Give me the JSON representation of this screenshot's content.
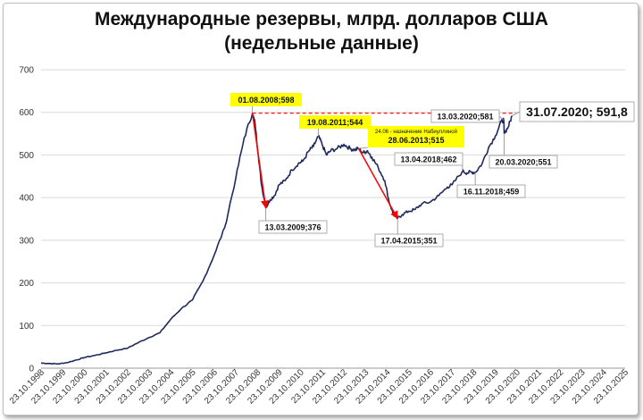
{
  "chart_data": {
    "type": "line",
    "title": "Международные резервы, млрд. долларов США",
    "subtitle": "(недельные данные)",
    "ylim": [
      0,
      700
    ],
    "yticks": [
      0,
      100,
      200,
      300,
      400,
      500,
      600,
      700
    ],
    "grid": true,
    "xticks": [
      "23.10.1998",
      "23.10.1999",
      "23.10.2000",
      "23.10.2001",
      "23.10.2002",
      "23.10.2003",
      "23.10.2004",
      "23.10.2005",
      "23.10.2006",
      "23.10.2007",
      "23.10.2008",
      "23.10.2009",
      "23.10.2010",
      "23.10.2011",
      "23.10.2012",
      "23.10.2013",
      "23.10.2014",
      "23.10.2015",
      "23.10.2016",
      "23.10.2017",
      "23.10.2018",
      "23.10.2019",
      "23.10.2020",
      "23.10.2021",
      "23.10.2022",
      "23.10.2023",
      "23.10.2024",
      "23.10.2025"
    ],
    "series": [
      {
        "points": [
          [
            1998.81,
            12
          ],
          [
            1999.2,
            11
          ],
          [
            1999.6,
            10
          ],
          [
            2000.0,
            13
          ],
          [
            2000.5,
            20
          ],
          [
            2000.81,
            25
          ],
          [
            2001.3,
            30
          ],
          [
            2001.81,
            36
          ],
          [
            2002.3,
            42
          ],
          [
            2002.81,
            47
          ],
          [
            2003.3,
            60
          ],
          [
            2003.81,
            72
          ],
          [
            2004.3,
            83
          ],
          [
            2004.81,
            115
          ],
          [
            2005.3,
            140
          ],
          [
            2005.81,
            160
          ],
          [
            2006.3,
            205
          ],
          [
            2006.81,
            265
          ],
          [
            2007.3,
            330
          ],
          [
            2007.81,
            445
          ],
          [
            2008.2,
            540
          ],
          [
            2008.58,
            598
          ],
          [
            2008.7,
            575
          ],
          [
            2008.85,
            500
          ],
          [
            2009.0,
            430
          ],
          [
            2009.2,
            376
          ],
          [
            2009.4,
            395
          ],
          [
            2009.6,
            405
          ],
          [
            2009.81,
            430
          ],
          [
            2010.1,
            440
          ],
          [
            2010.4,
            465
          ],
          [
            2010.7,
            480
          ],
          [
            2010.9,
            485
          ],
          [
            2011.2,
            510
          ],
          [
            2011.4,
            520
          ],
          [
            2011.63,
            544
          ],
          [
            2011.8,
            525
          ],
          [
            2012.0,
            500
          ],
          [
            2012.2,
            510
          ],
          [
            2012.5,
            515
          ],
          [
            2012.81,
            525
          ],
          [
            2013.1,
            515
          ],
          [
            2013.3,
            512
          ],
          [
            2013.49,
            515
          ],
          [
            2013.7,
            505
          ],
          [
            2013.9,
            510
          ],
          [
            2014.1,
            495
          ],
          [
            2014.4,
            470
          ],
          [
            2014.7,
            440
          ],
          [
            2014.9,
            390
          ],
          [
            2015.1,
            360
          ],
          [
            2015.29,
            351
          ],
          [
            2015.5,
            360
          ],
          [
            2015.8,
            368
          ],
          [
            2016.1,
            372
          ],
          [
            2016.4,
            385
          ],
          [
            2016.81,
            390
          ],
          [
            2017.2,
            405
          ],
          [
            2017.6,
            425
          ],
          [
            2017.81,
            430
          ],
          [
            2018.29,
            462
          ],
          [
            2018.5,
            458
          ],
          [
            2018.7,
            460
          ],
          [
            2018.88,
            459
          ],
          [
            2019.2,
            480
          ],
          [
            2019.5,
            518
          ],
          [
            2019.81,
            545
          ],
          [
            2020.1,
            580
          ],
          [
            2020.2,
            581
          ],
          [
            2020.22,
            551
          ],
          [
            2020.4,
            565
          ],
          [
            2020.58,
            591.8
          ]
        ]
      }
    ],
    "reference_line": {
      "value": 598,
      "style": "dashed",
      "color": "#ff0000"
    },
    "arrows": [
      {
        "from": [
          2008.58,
          598
        ],
        "to": [
          2009.2,
          376
        ],
        "color": "#ff0000"
      },
      {
        "from": [
          2013.49,
          515
        ],
        "to": [
          2015.29,
          351
        ],
        "color": "#ff0000"
      }
    ],
    "annotations": [
      {
        "x": 2008.58,
        "y": 598,
        "text": "01.08.2008;598",
        "highlight": true
      },
      {
        "x": 2011.63,
        "y": 544,
        "text": "19.08.2011;544",
        "highlight": true
      },
      {
        "x": 2013.49,
        "y": 515,
        "note": "24.06 - назначение Набиуллиной",
        "text": "28.06.2013;515",
        "highlight": true
      },
      {
        "x": 2009.2,
        "y": 376,
        "text": "13.03.2009;376",
        "highlight": false
      },
      {
        "x": 2015.29,
        "y": 351,
        "text": "17.04.2015;351",
        "highlight": false
      },
      {
        "x": 2018.29,
        "y": 462,
        "text": "13.04.2018;462",
        "highlight": false
      },
      {
        "x": 2018.88,
        "y": 459,
        "text": "16.11.2018;459",
        "highlight": false
      },
      {
        "x": 2020.2,
        "y": 581,
        "text": "13.03.2020;581",
        "highlight": false
      },
      {
        "x": 2020.22,
        "y": 551,
        "text": "20.03.2020;551",
        "highlight": false
      },
      {
        "x": 2020.58,
        "y": 591.8,
        "text": "31.07.2020; 591,8",
        "highlight": false,
        "big": true
      }
    ],
    "colors": {
      "line": "#1f2a5c",
      "highlight": "#ffff00",
      "arrow": "#ff0000"
    }
  }
}
